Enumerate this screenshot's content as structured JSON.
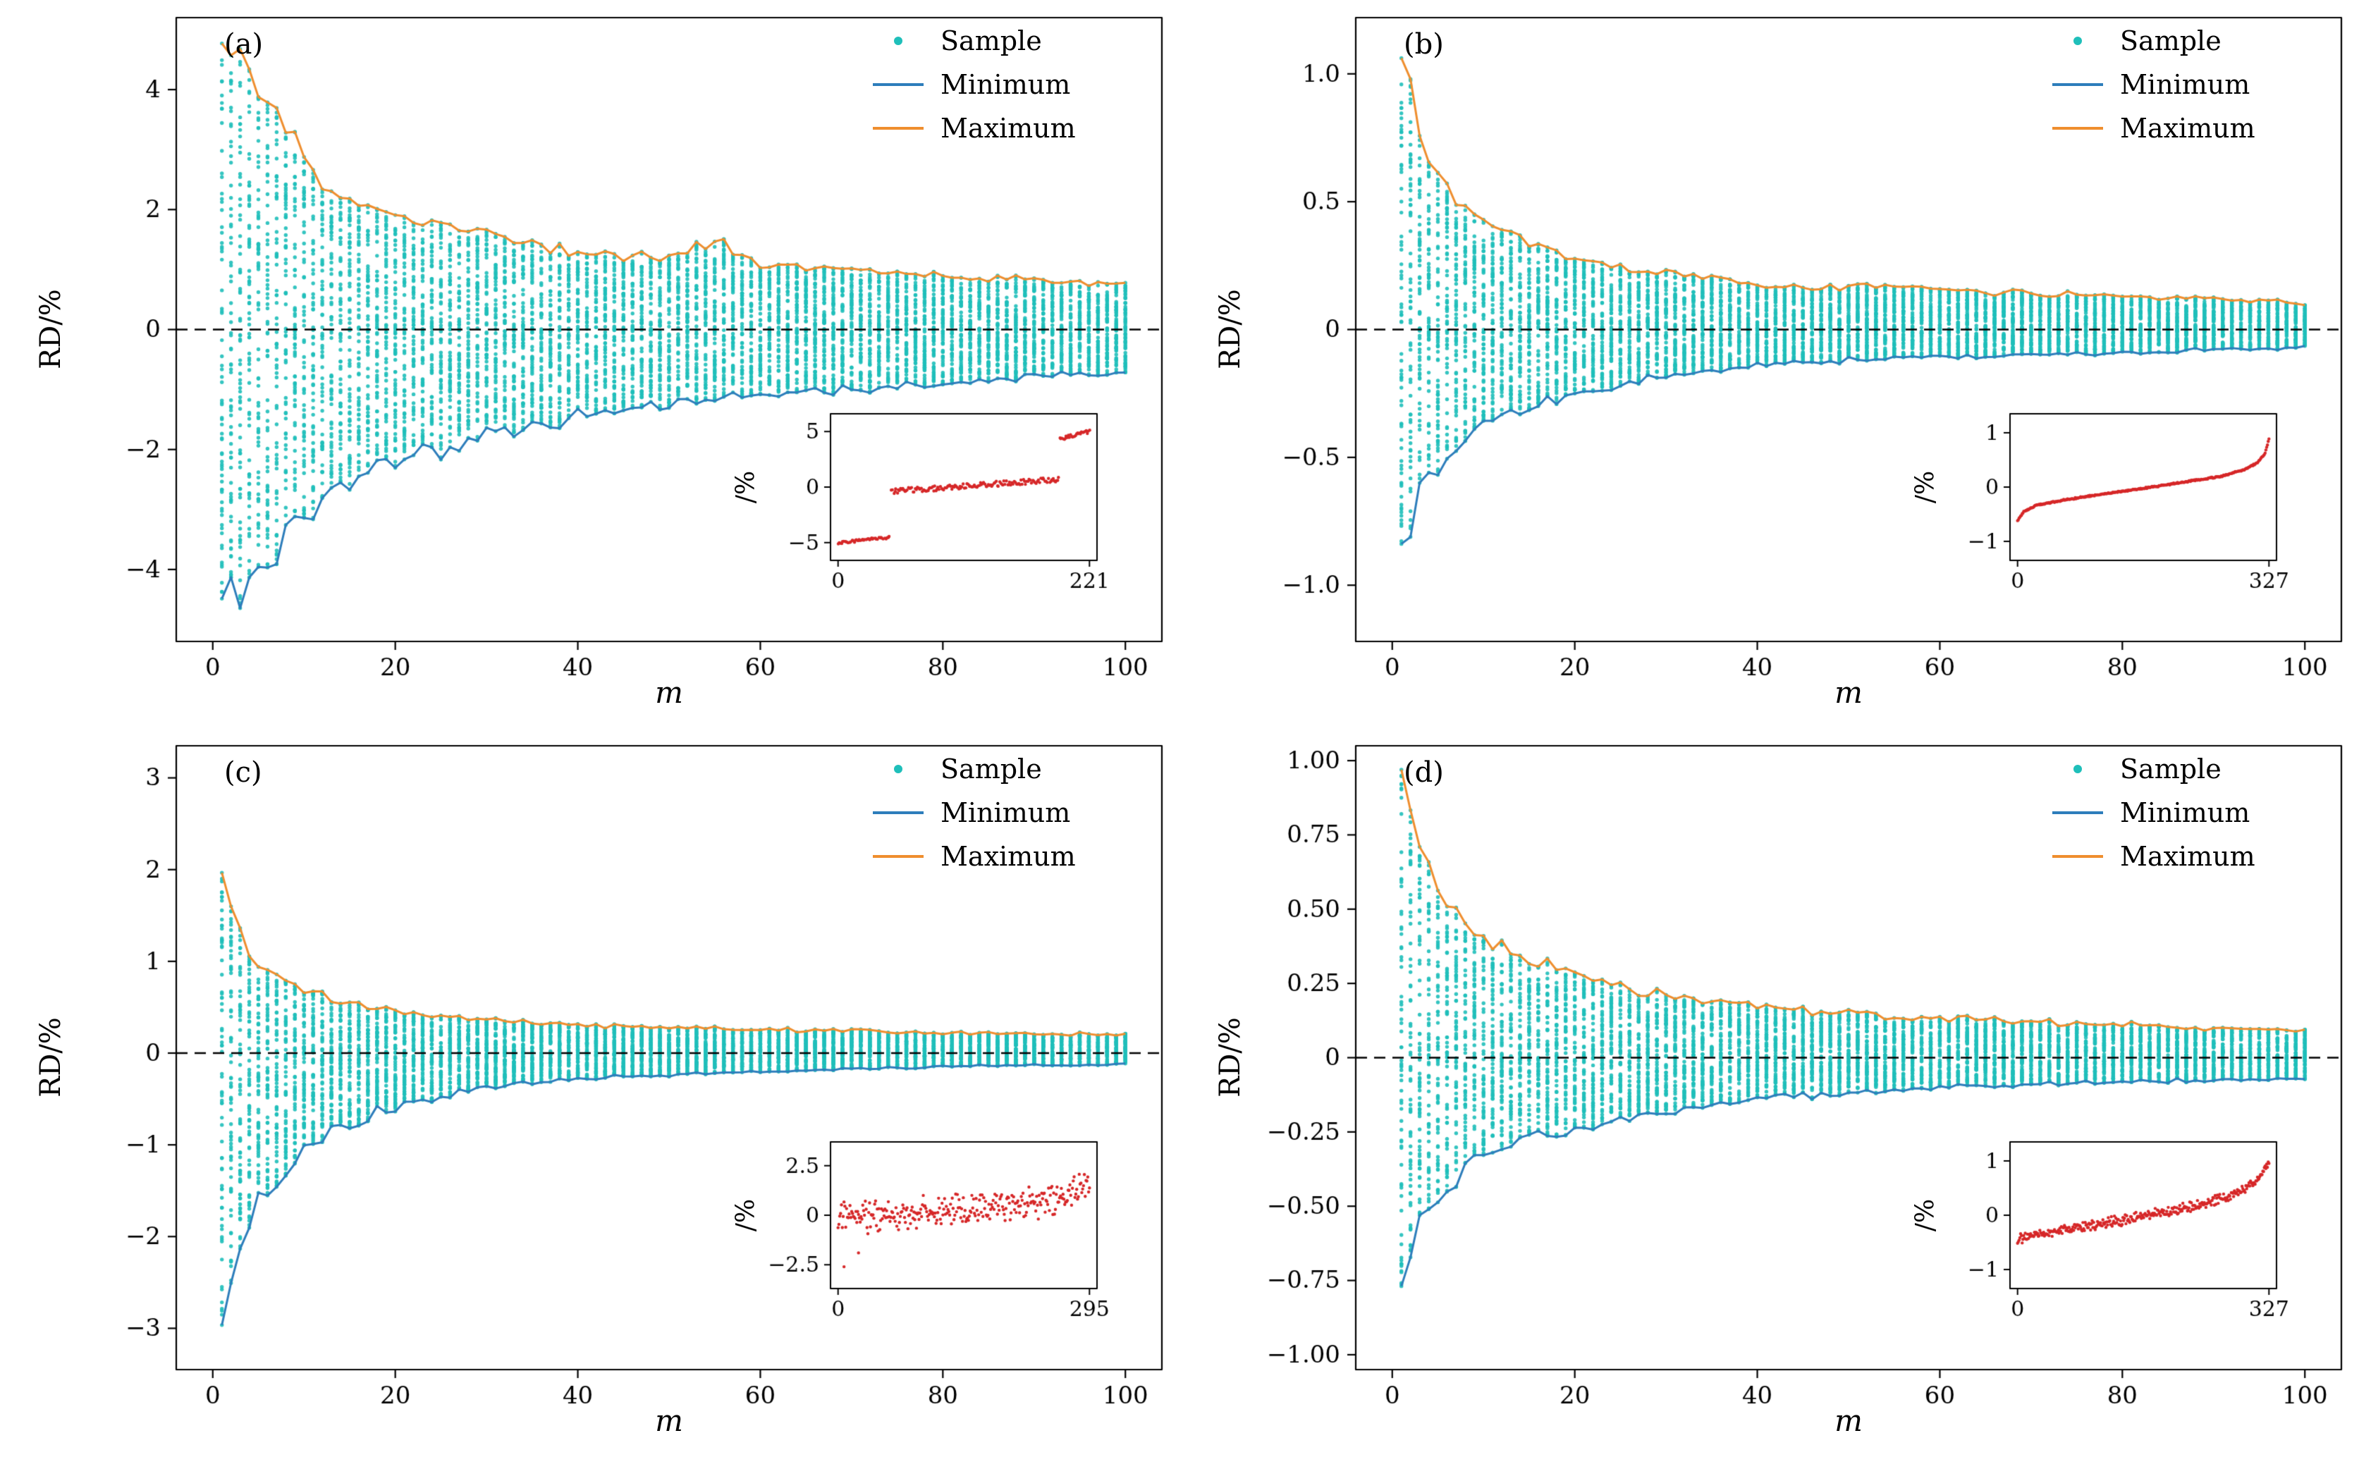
{
  "colors": {
    "sample": "#1fbfba",
    "minimum": "#2d7dbb",
    "maximum": "#ef8e2e",
    "inset_points": "#d62728",
    "zero_line": "#000000",
    "axes": "#000000"
  },
  "chart_data": [
    {
      "type": "scatter",
      "panel_label": "(a)",
      "xlabel": "m",
      "ylabel": "RD/%",
      "xlim": [
        -4,
        104
      ],
      "xticks": [
        0,
        20,
        40,
        60,
        80,
        100
      ],
      "xtick_labels": [
        "0",
        "20",
        "40",
        "60",
        "80",
        "100"
      ],
      "ylim": [
        -5.2,
        5.2
      ],
      "yticks": [
        -4,
        -2,
        0,
        2,
        4
      ],
      "ytick_labels": [
        "−4",
        "−2",
        "0",
        "2",
        "4"
      ],
      "legend": [
        "Sample",
        "Minimum",
        "Maximum"
      ],
      "zero_line": 0,
      "samples_per_column": 70,
      "seed": 11,
      "line_wiggle": 0.1,
      "envelope": {
        "m": [
          1,
          2,
          3,
          4,
          6,
          8,
          10,
          13,
          16,
          20,
          25,
          30,
          35,
          40,
          45,
          50,
          55,
          60,
          70,
          80,
          90,
          100
        ],
        "max": [
          4.75,
          4.4,
          4.65,
          4.3,
          3.9,
          3.3,
          2.85,
          2.3,
          2.1,
          1.85,
          1.75,
          1.6,
          1.45,
          1.3,
          1.25,
          1.2,
          1.45,
          1.1,
          1.0,
          0.9,
          0.85,
          0.75
        ],
        "min": [
          -4.4,
          -4.3,
          -4.5,
          -4.2,
          -3.9,
          -3.5,
          -3.1,
          -2.7,
          -2.5,
          -2.2,
          -2.0,
          -1.75,
          -1.6,
          -1.45,
          -1.35,
          -1.25,
          -1.15,
          -1.1,
          -1.0,
          -0.9,
          -0.8,
          -0.72
        ]
      },
      "inset": {
        "ylabel": "/%",
        "ylim": [
          -6.6,
          6.6
        ],
        "yticks": [
          -5,
          0,
          5
        ],
        "ytick_labels": [
          "−5",
          "0",
          "5"
        ],
        "n": 221,
        "xtick_labels": [
          "0",
          "221"
        ],
        "mode": "segments",
        "segments": [
          {
            "n": 45,
            "x0": 0,
            "x1": 45,
            "y0": -5.0,
            "y1": -4.55,
            "noise": 0.12
          },
          {
            "n": 148,
            "x0": 47,
            "x1": 194,
            "y0": -0.4,
            "y1": 0.7,
            "noise": 0.25
          },
          {
            "n": 28,
            "x0": 195,
            "x1": 221,
            "y0": 4.35,
            "y1": 5.0,
            "noise": 0.15
          }
        ]
      }
    },
    {
      "type": "scatter",
      "panel_label": "(b)",
      "xlabel": "m",
      "ylabel": "RD/%",
      "xlim": [
        -4,
        104
      ],
      "xticks": [
        0,
        20,
        40,
        60,
        80,
        100
      ],
      "xtick_labels": [
        "0",
        "20",
        "40",
        "60",
        "80",
        "100"
      ],
      "ylim": [
        -1.22,
        1.22
      ],
      "yticks": [
        -1.0,
        -0.5,
        0,
        0.5,
        1.0
      ],
      "ytick_labels": [
        "−1.0",
        "−0.5",
        "0",
        "0.5",
        "1.0"
      ],
      "legend": [
        "Sample",
        "Minimum",
        "Maximum"
      ],
      "zero_line": 0,
      "samples_per_column": 70,
      "seed": 22,
      "line_wiggle": 0.12,
      "envelope": {
        "m": [
          1,
          2,
          3,
          4,
          6,
          8,
          10,
          13,
          16,
          20,
          25,
          30,
          35,
          40,
          45,
          50,
          55,
          60,
          70,
          80,
          90,
          100
        ],
        "max": [
          1.08,
          0.95,
          0.78,
          0.68,
          0.58,
          0.52,
          0.46,
          0.38,
          0.33,
          0.28,
          0.24,
          0.22,
          0.2,
          0.18,
          0.17,
          0.17,
          0.16,
          0.16,
          0.14,
          0.13,
          0.12,
          0.1
        ],
        "min": [
          -0.9,
          -0.8,
          -0.66,
          -0.58,
          -0.5,
          -0.44,
          -0.38,
          -0.33,
          -0.3,
          -0.26,
          -0.22,
          -0.18,
          -0.16,
          -0.14,
          -0.13,
          -0.12,
          -0.11,
          -0.11,
          -0.1,
          -0.09,
          -0.08,
          -0.07
        ]
      },
      "inset": {
        "ylabel": "/%",
        "ylim": [
          -1.35,
          1.35
        ],
        "yticks": [
          -1,
          0,
          1
        ],
        "ytick_labels": [
          "−1",
          "0",
          "1"
        ],
        "n": 327,
        "xtick_labels": [
          "0",
          "327"
        ],
        "mode": "curve",
        "noise": 0.015,
        "points": [
          [
            0,
            -0.62
          ],
          [
            8,
            -0.45
          ],
          [
            25,
            -0.33
          ],
          [
            60,
            -0.24
          ],
          [
            110,
            -0.13
          ],
          [
            165,
            -0.02
          ],
          [
            220,
            0.1
          ],
          [
            265,
            0.2
          ],
          [
            295,
            0.32
          ],
          [
            312,
            0.45
          ],
          [
            322,
            0.62
          ],
          [
            327,
            0.88
          ]
        ]
      }
    },
    {
      "type": "scatter",
      "panel_label": "(c)",
      "xlabel": "m",
      "ylabel": "RD/%",
      "xlim": [
        -4,
        104
      ],
      "xticks": [
        0,
        20,
        40,
        60,
        80,
        100
      ],
      "xtick_labels": [
        "0",
        "20",
        "40",
        "60",
        "80",
        "100"
      ],
      "ylim": [
        -3.45,
        3.35
      ],
      "yticks": [
        -3,
        -2,
        -1,
        0,
        1,
        2,
        3
      ],
      "ytick_labels": [
        "−3",
        "−2",
        "−1",
        "0",
        "1",
        "2",
        "3"
      ],
      "legend": [
        "Sample",
        "Minimum",
        "Maximum"
      ],
      "zero_line": 0,
      "samples_per_column": 70,
      "seed": 33,
      "line_wiggle": 0.12,
      "envelope": {
        "m": [
          1,
          2,
          3,
          4,
          6,
          8,
          10,
          13,
          16,
          20,
          25,
          30,
          35,
          40,
          45,
          50,
          55,
          60,
          70,
          80,
          90,
          100
        ],
        "max": [
          1.9,
          1.55,
          1.25,
          1.05,
          0.9,
          0.78,
          0.68,
          0.58,
          0.52,
          0.45,
          0.4,
          0.36,
          0.33,
          0.3,
          0.29,
          0.28,
          0.27,
          0.26,
          0.24,
          0.22,
          0.21,
          0.2
        ],
        "min": [
          -3.1,
          -2.55,
          -2.1,
          -1.8,
          -1.5,
          -1.25,
          -1.05,
          -0.85,
          -0.72,
          -0.58,
          -0.47,
          -0.38,
          -0.33,
          -0.29,
          -0.26,
          -0.24,
          -0.22,
          -0.2,
          -0.17,
          -0.15,
          -0.13,
          -0.12
        ]
      },
      "inset": {
        "ylabel": "/%",
        "ylim": [
          -3.7,
          3.7
        ],
        "yticks": [
          -2.5,
          0,
          2.5
        ],
        "ytick_labels": [
          "−2.5",
          "0",
          "2.5"
        ],
        "n": 295,
        "xtick_labels": [
          "0",
          "295"
        ],
        "mode": "noisy",
        "noise": 0.6,
        "points": [
          [
            0,
            -0.15
          ],
          [
            40,
            -0.05
          ],
          [
            80,
            0.05
          ],
          [
            120,
            0.15
          ],
          [
            160,
            0.3
          ],
          [
            200,
            0.5
          ],
          [
            240,
            0.75
          ],
          [
            270,
            1.1
          ],
          [
            295,
            1.6
          ]
        ],
        "outliers": [
          [
            7,
            -2.6
          ],
          [
            24,
            -1.9
          ]
        ]
      }
    },
    {
      "type": "scatter",
      "panel_label": "(d)",
      "xlabel": "m",
      "ylabel": "RD/%",
      "xlim": [
        -4,
        104
      ],
      "xticks": [
        0,
        20,
        40,
        60,
        80,
        100
      ],
      "xtick_labels": [
        "0",
        "20",
        "40",
        "60",
        "80",
        "100"
      ],
      "ylim": [
        -1.05,
        1.05
      ],
      "yticks": [
        -1.0,
        -0.75,
        -0.5,
        -0.25,
        0,
        0.25,
        0.5,
        0.75,
        1.0
      ],
      "ytick_labels": [
        "−1.00",
        "−0.75",
        "−0.50",
        "−0.25",
        "0",
        "0.25",
        "0.50",
        "0.75",
        "1.00"
      ],
      "legend": [
        "Sample",
        "Minimum",
        "Maximum"
      ],
      "zero_line": 0,
      "samples_per_column": 70,
      "seed": 44,
      "line_wiggle": 0.12,
      "envelope": {
        "m": [
          1,
          2,
          3,
          4,
          6,
          8,
          10,
          13,
          16,
          20,
          25,
          30,
          35,
          40,
          45,
          50,
          55,
          60,
          70,
          80,
          90,
          100
        ],
        "max": [
          0.97,
          0.82,
          0.68,
          0.6,
          0.52,
          0.45,
          0.4,
          0.34,
          0.3,
          0.3,
          0.24,
          0.21,
          0.19,
          0.17,
          0.16,
          0.15,
          0.14,
          0.13,
          0.12,
          0.11,
          0.1,
          0.09
        ],
        "min": [
          -0.78,
          -0.68,
          -0.58,
          -0.52,
          -0.45,
          -0.38,
          -0.33,
          -0.3,
          -0.27,
          -0.24,
          -0.21,
          -0.18,
          -0.16,
          -0.14,
          -0.13,
          -0.12,
          -0.11,
          -0.1,
          -0.09,
          -0.08,
          -0.075,
          -0.07
        ]
      },
      "inset": {
        "ylabel": "/%",
        "ylim": [
          -1.35,
          1.35
        ],
        "yticks": [
          -1,
          0,
          1
        ],
        "ytick_labels": [
          "−1",
          "0",
          "1"
        ],
        "n": 327,
        "xtick_labels": [
          "0",
          "327"
        ],
        "mode": "noisy",
        "noise": 0.07,
        "points": [
          [
            0,
            -0.42
          ],
          [
            40,
            -0.32
          ],
          [
            90,
            -0.2
          ],
          [
            140,
            -0.08
          ],
          [
            190,
            0.05
          ],
          [
            230,
            0.16
          ],
          [
            265,
            0.3
          ],
          [
            290,
            0.45
          ],
          [
            310,
            0.62
          ],
          [
            327,
            0.95
          ]
        ]
      }
    }
  ]
}
